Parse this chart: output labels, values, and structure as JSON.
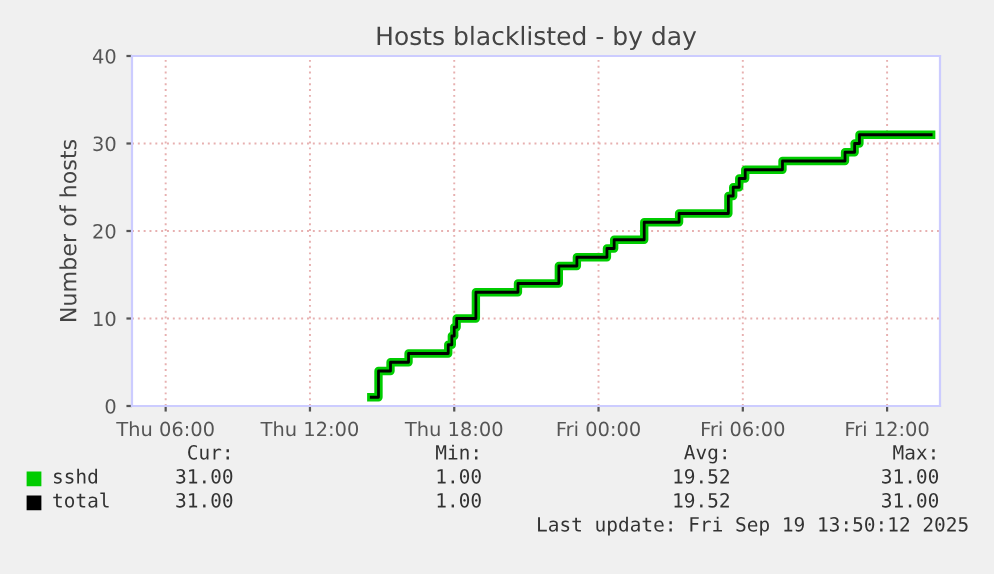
{
  "chart_data": {
    "type": "step",
    "title": "Hosts blacklisted - by day",
    "ylabel": "Number of hosts",
    "x": [
      "2025-09-18T14:33",
      "2025-09-18T14:51",
      "2025-09-18T15:21",
      "2025-09-18T16:06",
      "2025-09-18T17:45",
      "2025-09-18T17:54",
      "2025-09-18T18:00",
      "2025-09-18T18:06",
      "2025-09-18T18:54",
      "2025-09-18T20:39",
      "2025-09-18T22:21",
      "2025-09-18T23:06",
      "2025-09-19T00:21",
      "2025-09-19T00:39",
      "2025-09-19T01:54",
      "2025-09-19T03:21",
      "2025-09-19T05:24",
      "2025-09-19T05:36",
      "2025-09-19T05:51",
      "2025-09-19T06:06",
      "2025-09-19T07:39",
      "2025-09-19T10:15",
      "2025-09-19T10:39",
      "2025-09-19T10:51",
      "2025-09-19T13:50"
    ],
    "series": [
      {
        "name": "sshd",
        "color": "#00cc00",
        "values": [
          1,
          4,
          5,
          6,
          7,
          8,
          9,
          10,
          13,
          14,
          16,
          17,
          18,
          19,
          21,
          22,
          24,
          25,
          26,
          27,
          28,
          29,
          30,
          31,
          31
        ]
      },
      {
        "name": "total",
        "color": "#000000",
        "values": [
          1,
          4,
          5,
          6,
          7,
          8,
          9,
          10,
          13,
          14,
          16,
          17,
          18,
          19,
          21,
          22,
          24,
          25,
          26,
          27,
          28,
          29,
          30,
          31,
          31
        ]
      }
    ],
    "xlim": [
      "2025-09-18T04:36",
      "2025-09-19T14:12"
    ],
    "xticks": [
      {
        "value": "2025-09-18T06:00",
        "label": "Thu 06:00"
      },
      {
        "value": "2025-09-18T12:00",
        "label": "Thu 12:00"
      },
      {
        "value": "2025-09-18T18:00",
        "label": "Thu 18:00"
      },
      {
        "value": "2025-09-19T00:00",
        "label": "Fri 00:00"
      },
      {
        "value": "2025-09-19T06:00",
        "label": "Fri 06:00"
      },
      {
        "value": "2025-09-19T12:00",
        "label": "Fri 12:00"
      }
    ],
    "ylim": [
      0,
      40
    ],
    "yticks": [
      0,
      10,
      20,
      30,
      40
    ],
    "grid": true,
    "legend": "bottom",
    "annotations": [
      "Cur:",
      "Min:",
      "Avg:",
      "Max:",
      "31.00",
      "1.00",
      "19.52",
      "31.00",
      "31.00",
      "1.00",
      "19.52",
      "31.00",
      "Last update: Fri Sep 19 13:50:12 2025"
    ]
  }
}
